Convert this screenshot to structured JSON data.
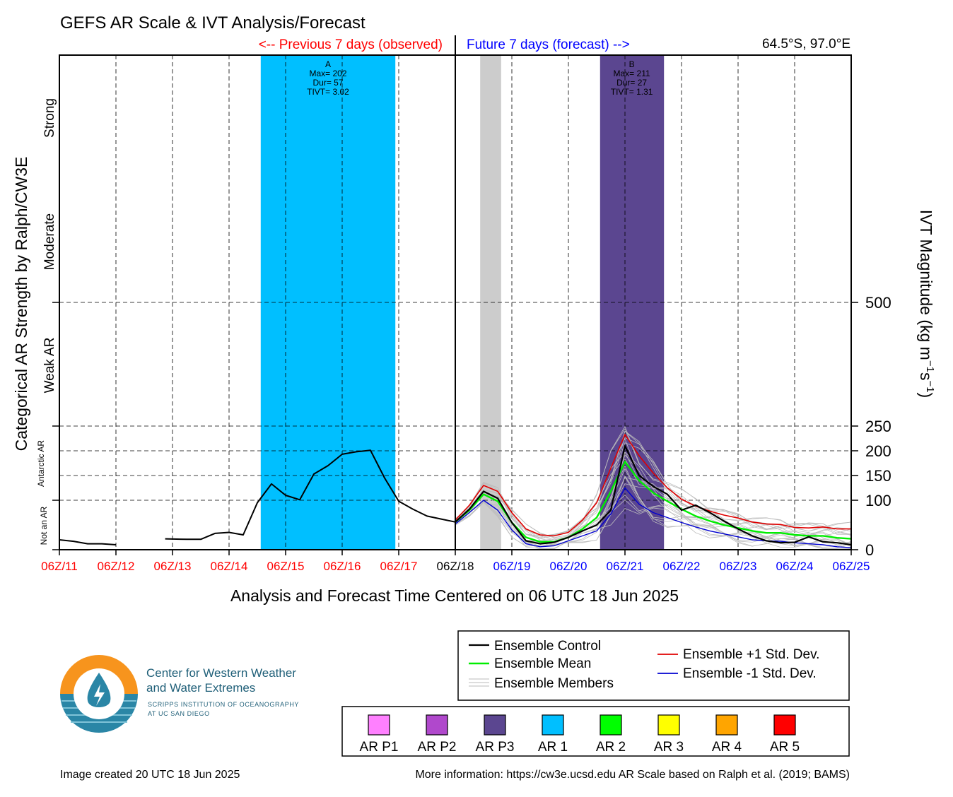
{
  "title": "GEFS AR Scale & IVT Analysis/Forecast",
  "previous_label": "<-- Previous 7 days (observed)",
  "future_label": "Future 7 days (forecast) -->",
  "location": "64.5°S, 97.0°E",
  "left_axis_title": "Categorical AR Strength by Ralph/CW3E",
  "right_axis_title": "IVT Magnitude (kg m",
  "x_axis_title": "Analysis and Forecast Time Centered on 06 UTC 18 Jun 2025",
  "category_labels": [
    "Not an AR",
    "Antarctic AR",
    "Weak AR",
    "Moderate",
    "Strong"
  ],
  "legend": {
    "control": "Ensemble Control",
    "mean": "Ensemble Mean",
    "members": "Ensemble Members",
    "plus_sd": "Ensemble +1 Std. Dev.",
    "minus_sd": "Ensemble -1 Std. Dev."
  },
  "ar_scale": [
    {
      "label": "AR P1",
      "color": "#ff80ff"
    },
    {
      "label": "AR P2",
      "color": "#b048cc"
    },
    {
      "label": "AR P3",
      "color": "#5b4690"
    },
    {
      "label": "AR 1",
      "color": "#00bfff"
    },
    {
      "label": "AR 2",
      "color": "#00ff00"
    },
    {
      "label": "AR 3",
      "color": "#ffff00"
    },
    {
      "label": "AR 4",
      "color": "#ffa500"
    },
    {
      "label": "AR 5",
      "color": "#ff0000"
    }
  ],
  "logo": {
    "line1": "Center for Western Weather",
    "line2": "and Water Extremes",
    "sub1": "SCRIPPS INSTITUTION OF OCEANOGRAPHY",
    "sub2": "AT UC SAN DIEGO"
  },
  "footer_left": "Image created 20 UTC 18 Jun 2025",
  "footer_right": "More information: https://cw3e.ucsd.edu AR Scale based on Ralph et al. (2019; BAMS)",
  "chart_data": {
    "type": "line",
    "x_unit": "days from 06Z/11 Jun 2025",
    "xlim": [
      0,
      14
    ],
    "x_ticks": [
      {
        "label": "06Z/11",
        "x": 0,
        "color": "#ff0000"
      },
      {
        "label": "06Z/12",
        "x": 1,
        "color": "#ff0000"
      },
      {
        "label": "06Z/13",
        "x": 2,
        "color": "#ff0000"
      },
      {
        "label": "06Z/14",
        "x": 3,
        "color": "#ff0000"
      },
      {
        "label": "06Z/15",
        "x": 4,
        "color": "#ff0000"
      },
      {
        "label": "06Z/16",
        "x": 5,
        "color": "#ff0000"
      },
      {
        "label": "06Z/17",
        "x": 6,
        "color": "#ff0000"
      },
      {
        "label": "06Z/18",
        "x": 7,
        "color": "#000000"
      },
      {
        "label": "06Z/19",
        "x": 8,
        "color": "#0000ff"
      },
      {
        "label": "06Z/20",
        "x": 9,
        "color": "#0000ff"
      },
      {
        "label": "06Z/21",
        "x": 10,
        "color": "#0000ff"
      },
      {
        "label": "06Z/22",
        "x": 11,
        "color": "#0000ff"
      },
      {
        "label": "06Z/23",
        "x": 12,
        "color": "#0000ff"
      },
      {
        "label": "06Z/24",
        "x": 13,
        "color": "#0000ff"
      },
      {
        "label": "06Z/25",
        "x": 14,
        "color": "#0000ff"
      }
    ],
    "y_ticks": [
      0,
      100,
      150,
      200,
      250,
      500
    ],
    "ylim": [
      0,
      1000
    ],
    "shaded_events": [
      {
        "x0": 3.56,
        "x1": 5.94,
        "color": "#00bfff",
        "label": "A",
        "lines": [
          "Max= 202",
          "Dur= 57",
          "TIVT= 3.02"
        ],
        "label_x": 4.75
      },
      {
        "x0": 7.44,
        "x1": 7.81,
        "color": "#cccccc",
        "label": "",
        "lines": [],
        "label_x": 7.62
      },
      {
        "x0": 9.56,
        "x1": 10.69,
        "color": "#5b4690",
        "label": "B",
        "lines": [
          "Max= 211",
          "Dur= 27",
          "TIVT= 1.31"
        ],
        "label_x": 10.12
      }
    ],
    "series": [
      {
        "key": "observed",
        "color": "#000000",
        "width": 2,
        "points": [
          [
            0,
            20
          ],
          [
            0.25,
            17
          ],
          [
            0.5,
            12
          ],
          [
            0.75,
            12
          ],
          [
            1,
            10
          ]
        ]
      },
      {
        "key": "observed2",
        "color": "#000000",
        "width": 2,
        "points": [
          [
            1.87,
            22
          ],
          [
            2.25,
            21
          ],
          [
            2.5,
            21
          ],
          [
            2.75,
            33
          ],
          [
            3,
            35
          ],
          [
            3.25,
            30
          ],
          [
            3.5,
            95
          ],
          [
            3.75,
            133
          ],
          [
            4,
            110
          ],
          [
            4.25,
            101
          ],
          [
            4.5,
            153
          ],
          [
            4.75,
            170
          ],
          [
            5,
            193
          ],
          [
            5.25,
            198
          ],
          [
            5.5,
            201
          ],
          [
            5.75,
            145
          ],
          [
            6,
            98
          ],
          [
            6.25,
            82
          ],
          [
            6.5,
            68
          ],
          [
            6.75,
            62
          ],
          [
            7,
            56
          ]
        ]
      },
      {
        "key": "plus_sd",
        "color": "#e00000",
        "width": 1.6,
        "points": [
          [
            7,
            60
          ],
          [
            7.25,
            90
          ],
          [
            7.5,
            130
          ],
          [
            7.75,
            118
          ],
          [
            8,
            75
          ],
          [
            8.25,
            42
          ],
          [
            8.5,
            30
          ],
          [
            8.75,
            28
          ],
          [
            9,
            35
          ],
          [
            9.25,
            60
          ],
          [
            9.5,
            95
          ],
          [
            9.75,
            165
          ],
          [
            10,
            233
          ],
          [
            10.25,
            190
          ],
          [
            10.5,
            155
          ],
          [
            10.75,
            125
          ],
          [
            11,
            102
          ],
          [
            11.25,
            88
          ],
          [
            11.5,
            78
          ],
          [
            11.75,
            70
          ],
          [
            12,
            64
          ],
          [
            12.25,
            56
          ],
          [
            12.5,
            52
          ],
          [
            12.75,
            51
          ],
          [
            13,
            45
          ],
          [
            13.25,
            44
          ],
          [
            13.5,
            46
          ],
          [
            13.75,
            42
          ],
          [
            14,
            42
          ]
        ]
      },
      {
        "key": "minus_sd",
        "color": "#0000d0",
        "width": 1.4,
        "points": [
          [
            7,
            52
          ],
          [
            7.25,
            75
          ],
          [
            7.5,
            100
          ],
          [
            7.75,
            80
          ],
          [
            8,
            40
          ],
          [
            8.25,
            12
          ],
          [
            8.5,
            6
          ],
          [
            8.75,
            8
          ],
          [
            9,
            18
          ],
          [
            9.25,
            28
          ],
          [
            9.5,
            38
          ],
          [
            9.75,
            72
          ],
          [
            10,
            125
          ],
          [
            10.25,
            92
          ],
          [
            10.5,
            75
          ],
          [
            10.75,
            65
          ],
          [
            11,
            55
          ],
          [
            11.25,
            46
          ],
          [
            11.5,
            38
          ],
          [
            11.75,
            32
          ],
          [
            12,
            26
          ],
          [
            12.25,
            20
          ],
          [
            12.5,
            18
          ],
          [
            12.75,
            17
          ],
          [
            13,
            14
          ],
          [
            13.25,
            12
          ],
          [
            13.5,
            10
          ],
          [
            13.75,
            6
          ],
          [
            14,
            4
          ]
        ]
      },
      {
        "key": "mean",
        "color": "#00ee00",
        "width": 2.4,
        "points": [
          [
            7,
            56
          ],
          [
            7.25,
            80
          ],
          [
            7.5,
            112
          ],
          [
            7.75,
            98
          ],
          [
            8,
            55
          ],
          [
            8.25,
            25
          ],
          [
            8.5,
            16
          ],
          [
            8.75,
            16
          ],
          [
            9,
            25
          ],
          [
            9.25,
            42
          ],
          [
            9.5,
            65
          ],
          [
            9.75,
            118
          ],
          [
            10,
            178
          ],
          [
            10.25,
            140
          ],
          [
            10.5,
            115
          ],
          [
            10.75,
            98
          ],
          [
            11,
            82
          ],
          [
            11.25,
            68
          ],
          [
            11.5,
            58
          ],
          [
            11.75,
            50
          ],
          [
            12,
            44
          ],
          [
            12.25,
            38
          ],
          [
            12.5,
            34
          ],
          [
            12.75,
            34
          ],
          [
            13,
            30
          ],
          [
            13.25,
            28
          ],
          [
            13.5,
            28
          ],
          [
            13.75,
            24
          ],
          [
            14,
            22
          ]
        ]
      },
      {
        "key": "control",
        "color": "#000000",
        "width": 2.2,
        "points": [
          [
            7,
            56
          ],
          [
            7.25,
            82
          ],
          [
            7.5,
            118
          ],
          [
            7.75,
            104
          ],
          [
            8,
            55
          ],
          [
            8.25,
            18
          ],
          [
            8.5,
            12
          ],
          [
            8.75,
            15
          ],
          [
            9,
            25
          ],
          [
            9.25,
            38
          ],
          [
            9.5,
            50
          ],
          [
            9.75,
            80
          ],
          [
            10,
            210
          ],
          [
            10.25,
            150
          ],
          [
            10.5,
            128
          ],
          [
            10.75,
            112
          ],
          [
            11,
            80
          ],
          [
            11.25,
            90
          ],
          [
            11.5,
            75
          ],
          [
            11.75,
            58
          ],
          [
            12,
            42
          ],
          [
            12.25,
            28
          ],
          [
            12.5,
            18
          ],
          [
            12.75,
            14
          ],
          [
            13,
            15
          ],
          [
            13.25,
            26
          ],
          [
            13.5,
            16
          ],
          [
            13.75,
            14
          ],
          [
            14,
            10
          ]
        ]
      }
    ]
  }
}
